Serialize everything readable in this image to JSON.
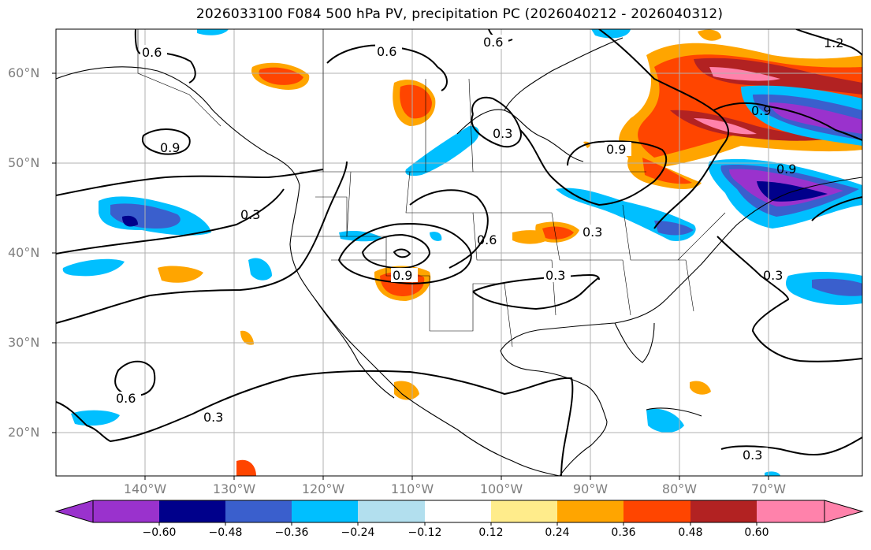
{
  "title": "2026033100 F084 500 hPa PV, precipitation PC (2026040212 - 2026040312)",
  "lat_labels": [
    "60°N",
    "50°N",
    "40°N",
    "30°N",
    "20°N"
  ],
  "lon_labels": [
    "140°W",
    "130°W",
    "120°W",
    "110°W",
    "100°W",
    "90°W",
    "80°W",
    "70°W"
  ],
  "contour_labels": [
    "0.6",
    "0.6",
    "0.6",
    "0.9",
    "0.3",
    "0.9",
    "0.3",
    "0.6",
    "0.9",
    "0.3",
    "0.3",
    "0.6",
    "0.3",
    "0.9",
    "0.9",
    "0.3",
    "1.2",
    "0.3"
  ],
  "colorbar": {
    "labels": [
      "−0.60",
      "−0.48",
      "−0.36",
      "−0.24",
      "−0.12",
      "0.12",
      "0.24",
      "0.36",
      "0.48",
      "0.60"
    ],
    "colors": [
      "#9a32cd",
      "#00008b",
      "#3a5fcd",
      "#00bfff",
      "#b2dfee",
      "#ffffff",
      "#ffec8b",
      "#ffa500",
      "#ff4500",
      "#b22222",
      "#ff82ab"
    ]
  }
}
